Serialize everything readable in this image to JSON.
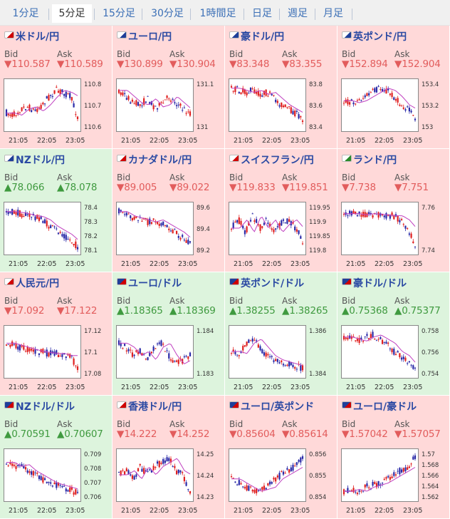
{
  "tabs": [
    "1分足",
    "5分足",
    "15分足",
    "30分足",
    "1時間足",
    "日足",
    "週足",
    "月足"
  ],
  "active_tab": "5分足",
  "labels": {
    "bid": "Bid",
    "ask": "Ask"
  },
  "arrows": {
    "down": "▼",
    "up": "▲"
  },
  "x_ticks": [
    "21:05",
    "22:05",
    "23:05"
  ],
  "colors": {
    "down_bg": "#ffd9d9",
    "up_bg": "#ddf4dd",
    "down_text": "#e25c5c",
    "up_text": "#3f9a3f",
    "candle_up": "#e02020",
    "candle_down": "#2a2aa8",
    "ma_line": "#c040c0",
    "pair_name": "#2b4aa3",
    "tab_link": "#3b6fb6"
  },
  "pairs": [
    {
      "name": "米ドル/円",
      "bid": "110.587",
      "ask": "110.589",
      "dir": "down",
      "flags": [
        "#ffffff",
        "#d00000"
      ],
      "y_ticks": [
        "110.8",
        "110.7",
        "110.6"
      ]
    },
    {
      "name": "ユーロ/円",
      "bid": "130.899",
      "ask": "130.904",
      "dir": "down",
      "flags": [
        "#ffffff",
        "#1f3f99"
      ],
      "y_ticks": [
        "131.1",
        "131"
      ]
    },
    {
      "name": "豪ドル/円",
      "bid": "83.348",
      "ask": "83.355",
      "dir": "down",
      "flags": [
        "#ffffff",
        "#1f3f99"
      ],
      "y_ticks": [
        "83.8",
        "83.6",
        "83.4"
      ]
    },
    {
      "name": "英ポンド/円",
      "bid": "152.894",
      "ask": "152.904",
      "dir": "down",
      "flags": [
        "#ffffff",
        "#1f3f99"
      ],
      "y_ticks": [
        "153.4",
        "153.2",
        "153"
      ]
    },
    {
      "name": "NZドル/円",
      "bid": "78.066",
      "ask": "78.078",
      "dir": "up",
      "flags": [
        "#ffffff",
        "#1f3f99"
      ],
      "y_ticks": [
        "78.4",
        "78.3",
        "78.2",
        "78.1"
      ]
    },
    {
      "name": "カナダドル/円",
      "bid": "89.005",
      "ask": "89.022",
      "dir": "down",
      "flags": [
        "#ffffff",
        "#d00000"
      ],
      "y_ticks": [
        "89.6",
        "89.4",
        "89.2"
      ]
    },
    {
      "name": "スイスフラン/円",
      "bid": "119.833",
      "ask": "119.851",
      "dir": "down",
      "flags": [
        "#ffffff",
        "#d00000"
      ],
      "y_ticks": [
        "119.95",
        "119.9",
        "119.85",
        "119.8"
      ]
    },
    {
      "name": "ランド/円",
      "bid": "7.738",
      "ask": "7.751",
      "dir": "down",
      "flags": [
        "#ffffff",
        "#2a8a2a"
      ],
      "y_ticks": [
        "7.76",
        "7.74"
      ]
    },
    {
      "name": "人民元/円",
      "bid": "17.092",
      "ask": "17.122",
      "dir": "down",
      "flags": [
        "#ffffff",
        "#d00000"
      ],
      "y_ticks": [
        "17.12",
        "17.1",
        "17.08"
      ]
    },
    {
      "name": "ユーロ/ドル",
      "bid": "1.18365",
      "ask": "1.18369",
      "dir": "up",
      "flags": [
        "#1f3f99",
        "#d00000"
      ],
      "y_ticks": [
        "1.184",
        "1.183"
      ]
    },
    {
      "name": "英ポンド/ドル",
      "bid": "1.38255",
      "ask": "1.38265",
      "dir": "up",
      "flags": [
        "#1f3f99",
        "#d00000"
      ],
      "y_ticks": [
        "1.386",
        "1.384"
      ]
    },
    {
      "name": "豪ドル/ドル",
      "bid": "0.75368",
      "ask": "0.75377",
      "dir": "up",
      "flags": [
        "#1f3f99",
        "#d00000"
      ],
      "y_ticks": [
        "0.758",
        "0.756",
        "0.754"
      ]
    },
    {
      "name": "NZドル/ドル",
      "bid": "0.70591",
      "ask": "0.70607",
      "dir": "up",
      "flags": [
        "#1f3f99",
        "#d00000"
      ],
      "y_ticks": [
        "0.709",
        "0.708",
        "0.707",
        "0.706"
      ]
    },
    {
      "name": "香港ドル/円",
      "bid": "14.222",
      "ask": "14.252",
      "dir": "down",
      "flags": [
        "#ffffff",
        "#d00000"
      ],
      "y_ticks": [
        "14.25",
        "14.24",
        "14.23"
      ]
    },
    {
      "name": "ユーロ/英ポンド",
      "bid": "0.85604",
      "ask": "0.85614",
      "dir": "down",
      "flags": [
        "#1f3f99",
        "#d00000"
      ],
      "y_ticks": [
        "0.856",
        "0.855",
        "0.854"
      ]
    },
    {
      "name": "ユーロ/豪ドル",
      "bid": "1.57042",
      "ask": "1.57057",
      "dir": "down",
      "flags": [
        "#1f3f99",
        "#d00000"
      ],
      "y_ticks": [
        "1.57",
        "1.568",
        "1.566",
        "1.564",
        "1.562"
      ]
    }
  ]
}
